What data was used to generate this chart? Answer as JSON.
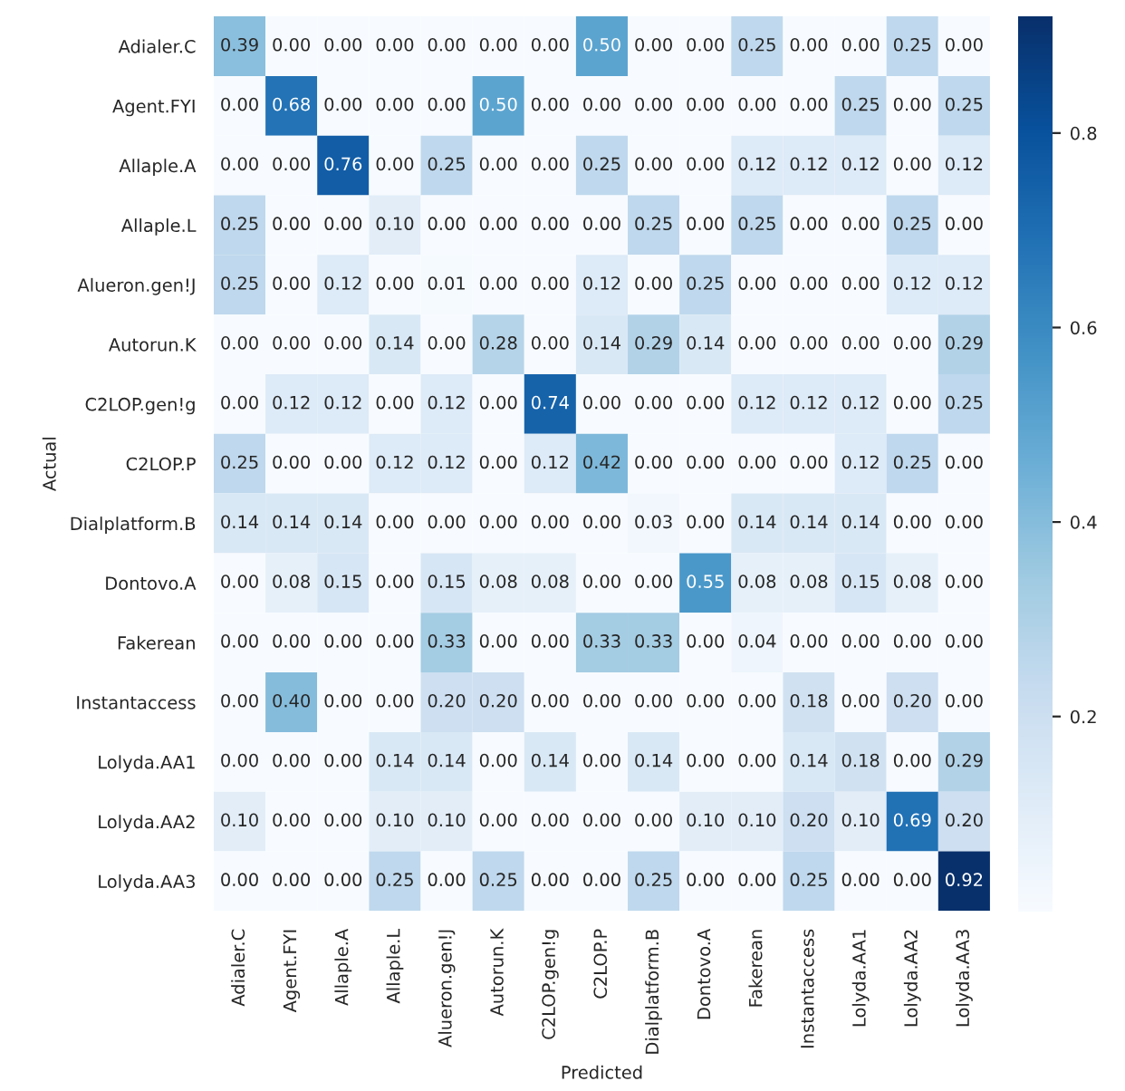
{
  "chart_data": {
    "type": "heatmap",
    "xlabel": "Predicted",
    "ylabel": "Actual",
    "categories": [
      "Adialer.C",
      "Agent.FYI",
      "Allaple.A",
      "Allaple.L",
      "Alueron.gen!J",
      "Autorun.K",
      "C2LOP.gen!g",
      "C2LOP.P",
      "Dialplatform.B",
      "Dontovo.A",
      "Fakerean",
      "Instantaccess",
      "Lolyda.AA1",
      "Lolyda.AA2",
      "Lolyda.AA3"
    ],
    "y_categories": [
      "Adialer.C",
      "Agent.FYI",
      "Allaple.A",
      "Allaple.L",
      "Alueron.gen!J",
      "Autorun.K",
      "C2LOP.gen!g",
      "C2LOP.P",
      "Dialplatform.B",
      "Dontovo.A",
      "Fakerean",
      "Instantaccess",
      "Lolyda.AA1",
      "Lolyda.AA2",
      "Lolyda.AA3"
    ],
    "cells": [
      [
        0.39,
        0,
        0,
        0,
        0,
        0,
        0,
        0.5,
        0,
        0,
        0.25,
        0,
        0,
        0.25,
        0
      ],
      [
        0,
        0.68,
        0,
        0,
        0,
        0.5,
        0,
        0,
        0,
        0,
        0,
        0,
        0.25,
        0,
        0.25
      ],
      [
        0,
        0,
        0.76,
        0,
        0.25,
        0,
        0,
        0.25,
        0,
        0,
        0.12,
        0.12,
        0.12,
        0,
        0.12
      ],
      [
        0.25,
        0,
        0,
        0.1,
        0,
        0,
        0,
        0,
        0.25,
        0,
        0.25,
        0,
        0,
        0.25,
        0
      ],
      [
        0.25,
        0,
        0.12,
        0,
        0.01,
        0,
        0,
        0.12,
        0,
        0.25,
        0,
        0,
        0,
        0.12,
        0.12
      ],
      [
        0,
        0,
        0,
        0.14,
        0,
        0.28,
        0,
        0.14,
        0.29,
        0.14,
        0,
        0,
        0,
        0,
        0.29
      ],
      [
        0,
        0.12,
        0.12,
        0,
        0.12,
        0,
        0.74,
        0,
        0,
        0,
        0.12,
        0.12,
        0.12,
        0,
        0.25
      ],
      [
        0.25,
        0,
        0,
        0.12,
        0.12,
        0,
        0.12,
        0.42,
        0,
        0,
        0,
        0,
        0.12,
        0.25,
        0
      ],
      [
        0.14,
        0.14,
        0.14,
        0,
        0,
        0,
        0,
        0,
        0.03,
        0,
        0.14,
        0.14,
        0.14,
        0,
        0
      ],
      [
        0,
        0.08,
        0.15,
        0,
        0.15,
        0.08,
        0.08,
        0,
        0,
        0.55,
        0.08,
        0.08,
        0.15,
        0.08,
        0
      ],
      [
        0,
        0,
        0,
        0,
        0.33,
        0,
        0,
        0.33,
        0.33,
        0,
        0.04,
        0,
        0,
        0,
        0
      ],
      [
        0,
        0.4,
        0,
        0,
        0.2,
        0.2,
        0,
        0,
        0,
        0,
        0,
        0.18,
        0,
        0.2,
        0
      ],
      [
        0,
        0,
        0,
        0.14,
        0.14,
        0,
        0.14,
        0,
        0.14,
        0,
        0,
        0.14,
        0.18,
        0,
        0.29
      ],
      [
        0.1,
        0,
        0,
        0.1,
        0.1,
        0,
        0,
        0,
        0,
        0.1,
        0.1,
        0.2,
        0.1,
        0.69,
        0.2
      ],
      [
        0,
        0,
        0,
        0.25,
        0,
        0.25,
        0,
        0,
        0.25,
        0,
        0,
        0.25,
        0,
        0,
        0.92
      ]
    ],
    "cell_labels": [
      [
        "0.39",
        "0.00",
        "0.00",
        "0.00",
        "0.00",
        "0.00",
        "0.00",
        "0.50",
        "0.00",
        "0.00",
        "0.25",
        "0.00",
        "0.00",
        "0.25",
        "0.00"
      ],
      [
        "0.00",
        "0.68",
        "0.00",
        "0.00",
        "0.00",
        "0.50",
        "0.00",
        "0.00",
        "0.00",
        "0.00",
        "0.00",
        "0.00",
        "0.25",
        "0.00",
        "0.25"
      ],
      [
        "0.00",
        "0.00",
        "0.76",
        "0.00",
        "0.25",
        "0.00",
        "0.00",
        "0.25",
        "0.00",
        "0.00",
        "0.12",
        "0.12",
        "0.12",
        "0.00",
        "0.12"
      ],
      [
        "0.25",
        "0.00",
        "0.00",
        "0.10",
        "0.00",
        "0.00",
        "0.00",
        "0.00",
        "0.25",
        "0.00",
        "0.25",
        "0.00",
        "0.00",
        "0.25",
        "0.00"
      ],
      [
        "0.25",
        "0.00",
        "0.12",
        "0.00",
        "0.01",
        "0.00",
        "0.00",
        "0.12",
        "0.00",
        "0.25",
        "0.00",
        "0.00",
        "0.00",
        "0.12",
        "0.12"
      ],
      [
        "0.00",
        "0.00",
        "0.00",
        "0.14",
        "0.00",
        "0.28",
        "0.00",
        "0.14",
        "0.29",
        "0.14",
        "0.00",
        "0.00",
        "0.00",
        "0.00",
        "0.29"
      ],
      [
        "0.00",
        "0.12",
        "0.12",
        "0.00",
        "0.12",
        "0.00",
        "0.74",
        "0.00",
        "0.00",
        "0.00",
        "0.12",
        "0.12",
        "0.12",
        "0.00",
        "0.25"
      ],
      [
        "0.25",
        "0.00",
        "0.00",
        "0.12",
        "0.12",
        "0.00",
        "0.12",
        "0.42",
        "0.00",
        "0.00",
        "0.00",
        "0.00",
        "0.12",
        "0.25",
        "0.00"
      ],
      [
        "0.14",
        "0.14",
        "0.14",
        "0.00",
        "0.00",
        "0.00",
        "0.00",
        "0.00",
        "0.03",
        "0.00",
        "0.14",
        "0.14",
        "0.14",
        "0.00",
        "0.00"
      ],
      [
        "0.00",
        "0.08",
        "0.15",
        "0.00",
        "0.15",
        "0.08",
        "0.08",
        "0.00",
        "0.00",
        "0.55",
        "0.08",
        "0.08",
        "0.15",
        "0.08",
        "0.00"
      ],
      [
        "0.00",
        "0.00",
        "0.00",
        "0.00",
        "0.33",
        "0.00",
        "0.00",
        "0.33",
        "0.33",
        "0.00",
        "0.04",
        "0.00",
        "0.00",
        "0.00",
        "0.00"
      ],
      [
        "0.00",
        "0.40",
        "0.00",
        "0.00",
        "0.20",
        "0.20",
        "0.00",
        "0.00",
        "0.00",
        "0.00",
        "0.00",
        "0.18",
        "0.00",
        "0.20",
        "0.00"
      ],
      [
        "0.00",
        "0.00",
        "0.00",
        "0.14",
        "0.14",
        "0.00",
        "0.14",
        "0.00",
        "0.14",
        "0.00",
        "0.00",
        "0.14",
        "0.18",
        "0.00",
        "0.29"
      ],
      [
        "0.10",
        "0.00",
        "0.00",
        "0.10",
        "0.10",
        "0.00",
        "0.00",
        "0.00",
        "0.00",
        "0.10",
        "0.10",
        "0.20",
        "0.10",
        "0.69",
        "0.20"
      ],
      [
        "0.00",
        "0.00",
        "0.00",
        "0.25",
        "0.00",
        "0.25",
        "0.00",
        "0.00",
        "0.25",
        "0.00",
        "0.00",
        "0.25",
        "0.00",
        "0.00",
        "0.92"
      ]
    ],
    "clim": [
      0,
      0.92
    ],
    "cticks": [
      0.2,
      0.4,
      0.6,
      0.8
    ]
  }
}
